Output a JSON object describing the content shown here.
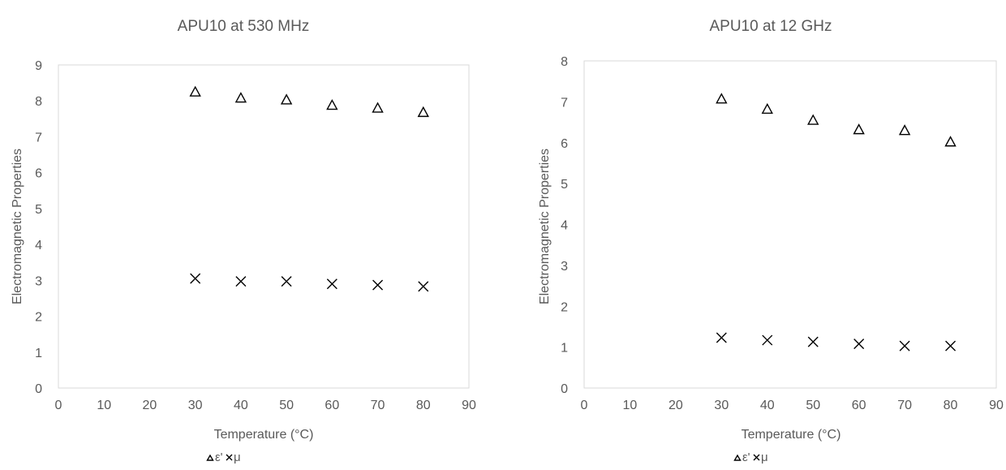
{
  "chart_data": [
    {
      "type": "scatter",
      "title": "APU10 at 530 MHz",
      "xlabel": "Temperature (°C)",
      "ylabel": "Electromagnetic Properties",
      "xlim": [
        0,
        90
      ],
      "ylim": [
        0,
        9
      ],
      "xticks": [
        0,
        10,
        20,
        30,
        40,
        50,
        60,
        70,
        80,
        90
      ],
      "yticks": [
        0,
        1,
        2,
        3,
        4,
        5,
        6,
        7,
        8,
        9
      ],
      "x": [
        30,
        40,
        50,
        60,
        70,
        80
      ],
      "series": [
        {
          "name": "ε'",
          "marker": "triangle",
          "values": [
            8.25,
            8.08,
            8.03,
            7.88,
            7.8,
            7.68
          ]
        },
        {
          "name": "μ",
          "marker": "x",
          "values": [
            3.05,
            2.97,
            2.97,
            2.9,
            2.87,
            2.83
          ]
        }
      ],
      "legend": "bottom",
      "grid": false
    },
    {
      "type": "scatter",
      "title": "APU10 at 12 GHz",
      "xlabel": "Temperature (°C)",
      "ylabel": "Electromagnetic Properties",
      "xlim": [
        0,
        90
      ],
      "ylim": [
        0,
        8
      ],
      "xticks": [
        0,
        10,
        20,
        30,
        40,
        50,
        60,
        70,
        80,
        90
      ],
      "yticks": [
        0,
        1,
        2,
        3,
        4,
        5,
        6,
        7,
        8
      ],
      "x": [
        30,
        40,
        50,
        60,
        70,
        80
      ],
      "series": [
        {
          "name": "ε'",
          "marker": "triangle",
          "values": [
            7.07,
            6.82,
            6.55,
            6.32,
            6.3,
            6.02
          ]
        },
        {
          "name": "μ",
          "marker": "x",
          "values": [
            1.23,
            1.17,
            1.13,
            1.08,
            1.03,
            1.03
          ]
        }
      ],
      "legend": "bottom",
      "grid": false
    }
  ]
}
